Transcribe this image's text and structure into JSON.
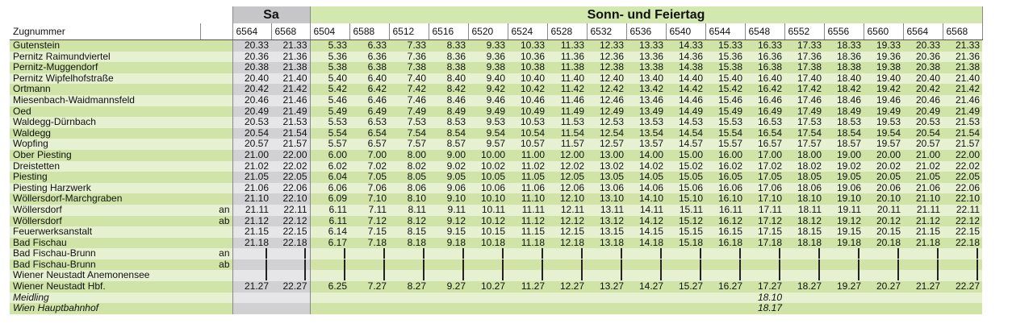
{
  "header": {
    "sa_label": "Sa",
    "so_label": "Sonn- und Feiertag",
    "train_label": "Zugnummer",
    "sa_trains": [
      "6564",
      "6568"
    ],
    "so_trains": [
      "6504",
      "6588",
      "6512",
      "6516",
      "6520",
      "6524",
      "6528",
      "6532",
      "6536",
      "6540",
      "6544",
      "6548",
      "6552",
      "6556",
      "6560",
      "6564",
      "6568"
    ]
  },
  "rows": [
    {
      "station": "Gutenstein",
      "suffix": "",
      "italic": false,
      "sa": [
        "20.33",
        "21.33"
      ],
      "so": [
        "5.33",
        "6.33",
        "7.33",
        "8.33",
        "9.33",
        "10.33",
        "11.33",
        "12.33",
        "13.33",
        "14.33",
        "15.33",
        "16.33",
        "17.33",
        "18.33",
        "19.33",
        "20.33",
        "21.33"
      ]
    },
    {
      "station": "Pernitz Raimundviertel",
      "suffix": "",
      "italic": false,
      "sa": [
        "20.36",
        "21.36"
      ],
      "so": [
        "5.36",
        "6.36",
        "7.36",
        "8.36",
        "9.36",
        "10.36",
        "11.36",
        "12.36",
        "13.36",
        "14.36",
        "15.36",
        "16.36",
        "17.36",
        "18.36",
        "19.36",
        "20.36",
        "21.36"
      ]
    },
    {
      "station": "Pernitz-Muggendorf",
      "suffix": "",
      "italic": false,
      "sa": [
        "20.38",
        "21.38"
      ],
      "so": [
        "5.38",
        "6.38",
        "7.38",
        "8.38",
        "9.38",
        "10.38",
        "11.38",
        "12.38",
        "13.38",
        "14.38",
        "15.38",
        "16.38",
        "17.38",
        "18.38",
        "19.38",
        "20.38",
        "21.38"
      ]
    },
    {
      "station": "Pernitz Wipfelhofstraße",
      "suffix": "",
      "italic": false,
      "sa": [
        "20.40",
        "21.40"
      ],
      "so": [
        "5.40",
        "6.40",
        "7.40",
        "8.40",
        "9.40",
        "10.40",
        "11.40",
        "12.40",
        "13.40",
        "14.40",
        "15.40",
        "16.40",
        "17.40",
        "18.40",
        "19.40",
        "20.40",
        "21.40"
      ]
    },
    {
      "station": "Ortmann",
      "suffix": "",
      "italic": false,
      "sa": [
        "20.42",
        "21.42"
      ],
      "so": [
        "5.42",
        "6.42",
        "7.42",
        "8.42",
        "9.42",
        "10.42",
        "11.42",
        "12.42",
        "13.42",
        "14.42",
        "15.42",
        "16.42",
        "17.42",
        "18.42",
        "19.42",
        "20.42",
        "21.42"
      ]
    },
    {
      "station": "Miesenbach-Waidmannsfeld",
      "suffix": "",
      "italic": false,
      "sa": [
        "20.46",
        "21.46"
      ],
      "so": [
        "5.46",
        "6.46",
        "7.46",
        "8.46",
        "9.46",
        "10.46",
        "11.46",
        "12.46",
        "13.46",
        "14.46",
        "15.46",
        "16.46",
        "17.46",
        "18.46",
        "19.46",
        "20.46",
        "21.46"
      ]
    },
    {
      "station": "Oed",
      "suffix": "",
      "italic": false,
      "sa": [
        "20.49",
        "21.49"
      ],
      "so": [
        "5.49",
        "6.49",
        "7.49",
        "8.49",
        "9.49",
        "10.49",
        "11.49",
        "12.49",
        "13.49",
        "14.49",
        "15.49",
        "16.49",
        "17.49",
        "18.49",
        "19.49",
        "20.49",
        "21.49"
      ]
    },
    {
      "station": "Waldegg-Dürnbach",
      "suffix": "",
      "italic": false,
      "sa": [
        "20.53",
        "21.53"
      ],
      "so": [
        "5.53",
        "6.53",
        "7.53",
        "8.53",
        "9.53",
        "10.53",
        "11.53",
        "12.53",
        "13.53",
        "14.53",
        "15.53",
        "16.53",
        "17.53",
        "18.53",
        "19.53",
        "20.53",
        "21.53"
      ]
    },
    {
      "station": "Waldegg",
      "suffix": "",
      "italic": false,
      "sa": [
        "20.54",
        "21.54"
      ],
      "so": [
        "5.54",
        "6.54",
        "7.54",
        "8.54",
        "9.54",
        "10.54",
        "11.54",
        "12.54",
        "13.54",
        "14.54",
        "15.54",
        "16.54",
        "17.54",
        "18.54",
        "19.54",
        "20.54",
        "21.54"
      ]
    },
    {
      "station": "Wopfing",
      "suffix": "",
      "italic": false,
      "sa": [
        "20.57",
        "21.57"
      ],
      "so": [
        "5.57",
        "6.57",
        "7.57",
        "8.57",
        "9.57",
        "10.57",
        "11.57",
        "12.57",
        "13.57",
        "14.57",
        "15.57",
        "16.57",
        "17.57",
        "18.57",
        "19.57",
        "20.57",
        "21.57"
      ]
    },
    {
      "station": "Ober Piesting",
      "suffix": "",
      "italic": false,
      "sa": [
        "21.00",
        "22.00"
      ],
      "so": [
        "6.00",
        "7.00",
        "8.00",
        "9.00",
        "10.00",
        "11.00",
        "12.00",
        "13.00",
        "14.00",
        "15.00",
        "16.00",
        "17.00",
        "18.00",
        "19.00",
        "20.00",
        "21.00",
        "22.00"
      ]
    },
    {
      "station": "Dreistetten",
      "suffix": "",
      "italic": false,
      "sa": [
        "21.02",
        "22.02"
      ],
      "so": [
        "6.02",
        "7.02",
        "8.02",
        "9.02",
        "10.02",
        "11.02",
        "12.02",
        "13.02",
        "14.02",
        "15.02",
        "16.02",
        "17.02",
        "18.02",
        "19.02",
        "20.02",
        "21.02",
        "22.02"
      ]
    },
    {
      "station": "Piesting",
      "suffix": "",
      "italic": false,
      "sa": [
        "21.05",
        "22.05"
      ],
      "so": [
        "6.04",
        "7.05",
        "8.05",
        "9.05",
        "10.05",
        "11.05",
        "12.05",
        "13.05",
        "14.05",
        "15.05",
        "16.05",
        "17.05",
        "18.05",
        "19.05",
        "20.05",
        "21.05",
        "22.05"
      ]
    },
    {
      "station": "Piesting Harzwerk",
      "suffix": "",
      "italic": false,
      "sa": [
        "21.06",
        "22.06"
      ],
      "so": [
        "6.06",
        "7.06",
        "8.06",
        "9.06",
        "10.06",
        "11.06",
        "12.06",
        "13.06",
        "14.06",
        "15.06",
        "16.06",
        "17.06",
        "18.06",
        "19.06",
        "20.06",
        "21.06",
        "22.06"
      ]
    },
    {
      "station": "Wöllersdorf-Marchgraben",
      "suffix": "",
      "italic": false,
      "sa": [
        "21.10",
        "22.10"
      ],
      "so": [
        "6.09",
        "7.10",
        "8.10",
        "9.10",
        "10.10",
        "11.10",
        "12.10",
        "13.10",
        "14.10",
        "15.10",
        "16.10",
        "17.10",
        "18.10",
        "19.10",
        "20.10",
        "21.10",
        "22.10"
      ]
    },
    {
      "station": "Wöllersdorf",
      "suffix": "an",
      "italic": false,
      "sa": [
        "21.11",
        "22.11"
      ],
      "so": [
        "6.11",
        "7.11",
        "8.11",
        "9.11",
        "10.11",
        "11.11",
        "12.11",
        "13.11",
        "14.11",
        "15.11",
        "16.11",
        "17.11",
        "18.11",
        "19.11",
        "20.11",
        "21.11",
        "22.11"
      ]
    },
    {
      "station": "Wöllersdorf",
      "suffix": "ab",
      "italic": false,
      "sa": [
        "21.12",
        "22.12"
      ],
      "so": [
        "6.11",
        "7.12",
        "8.12",
        "9.12",
        "10.12",
        "11.12",
        "12.12",
        "13.12",
        "14.12",
        "15.12",
        "16.12",
        "17.12",
        "18.12",
        "19.12",
        "20.12",
        "21.12",
        "22.12"
      ]
    },
    {
      "station": "Feuerwerksanstalt",
      "suffix": "",
      "italic": false,
      "sa": [
        "21.15",
        "22.15"
      ],
      "so": [
        "6.14",
        "7.15",
        "8.15",
        "9.15",
        "10.15",
        "11.15",
        "12.15",
        "13.15",
        "14.15",
        "15.15",
        "16.15",
        "17.15",
        "18.15",
        "19.15",
        "20.15",
        "21.15",
        "22.15"
      ]
    },
    {
      "station": "Bad Fischau",
      "suffix": "",
      "italic": false,
      "sa": [
        "21.18",
        "22.18"
      ],
      "so": [
        "6.17",
        "7.18",
        "8.18",
        "9.18",
        "10.18",
        "11.18",
        "12.18",
        "13.18",
        "14.18",
        "15.18",
        "16.18",
        "17.18",
        "18.18",
        "19.18",
        "20.18",
        "21.18",
        "22.18"
      ]
    },
    {
      "station": "Bad Fischau-Brunn",
      "suffix": "an",
      "italic": false,
      "sa": [
        "|",
        "|"
      ],
      "so": [
        "|",
        "|",
        "|",
        "|",
        "|",
        "|",
        "|",
        "|",
        "|",
        "|",
        "|",
        "|",
        "|",
        "|",
        "|",
        "|",
        "|"
      ]
    },
    {
      "station": "Bad Fischau-Brunn",
      "suffix": "ab",
      "italic": false,
      "sa": [
        "|",
        "|"
      ],
      "so": [
        "|",
        "|",
        "|",
        "|",
        "|",
        "|",
        "|",
        "|",
        "|",
        "|",
        "|",
        "|",
        "|",
        "|",
        "|",
        "|",
        "|"
      ]
    },
    {
      "station": "Wiener Neustadt Anemonensee",
      "suffix": "",
      "italic": false,
      "sa": [
        "|",
        "|"
      ],
      "so": [
        "|",
        "|",
        "|",
        "|",
        "|",
        "|",
        "|",
        "|",
        "|",
        "|",
        "|",
        "|",
        "|",
        "|",
        "|",
        "|",
        "|"
      ]
    },
    {
      "station": "Wiener Neustadt Hbf.",
      "suffix": "",
      "italic": false,
      "sa": [
        "21.27",
        "22.27"
      ],
      "so": [
        "6.25",
        "7.27",
        "8.27",
        "9.27",
        "10.27",
        "11.27",
        "12.27",
        "13.27",
        "14.27",
        "15.27",
        "16.27",
        "17.27",
        "18.27",
        "19.27",
        "20.27",
        "21.27",
        "22.27"
      ]
    },
    {
      "station": "Meidling",
      "suffix": "",
      "italic": true,
      "sa": [
        "",
        ""
      ],
      "so": [
        "",
        "",
        "",
        "",
        "",
        "",
        "",
        "",
        "",
        "",
        "",
        "18.10",
        "",
        "",
        "",
        "",
        ""
      ]
    },
    {
      "station": "Wien Hauptbahnhof",
      "suffix": "",
      "italic": true,
      "sa": [
        "",
        ""
      ],
      "so": [
        "",
        "",
        "",
        "",
        "",
        "",
        "",
        "",
        "",
        "",
        "",
        "18.17",
        "",
        "",
        "",
        "",
        ""
      ]
    }
  ]
}
